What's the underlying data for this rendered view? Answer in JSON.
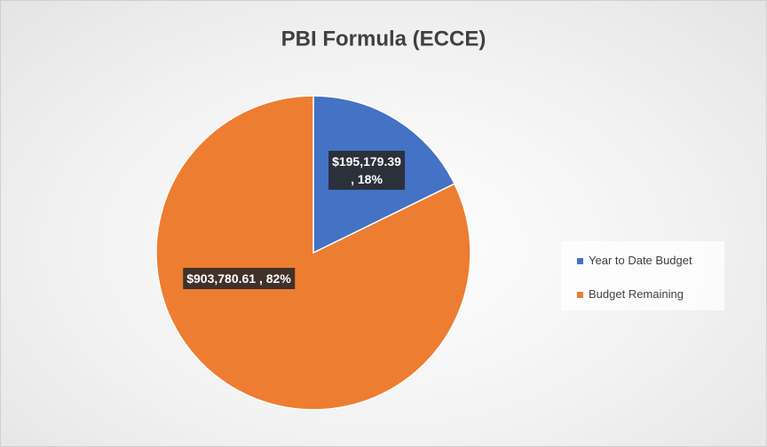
{
  "chart_data": {
    "type": "pie",
    "title": "PBI Formula (ECCE)",
    "categories": [
      "Year to Date Budget",
      "Budget Remaining"
    ],
    "values": [
      195179.39,
      903780.61
    ],
    "value_labels": [
      "$195,179.39\n, 18%",
      "$903,780.61 , 82%"
    ],
    "colors": [
      "#4472c4",
      "#ed7d31"
    ],
    "legend": "right"
  }
}
